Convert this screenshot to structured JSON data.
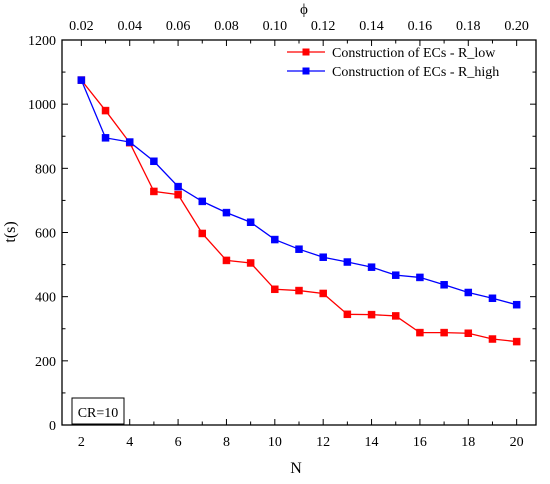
{
  "chart_data": {
    "type": "line",
    "xlabel": "N",
    "ylabel": "t(s)",
    "top_xlabel": "ϕ",
    "xlim": [
      1.2,
      20.8
    ],
    "ylim": [
      0,
      1200
    ],
    "top_xlim": [
      0.012,
      0.208
    ],
    "x_ticks": [
      2,
      4,
      6,
      8,
      10,
      12,
      14,
      16,
      18,
      20
    ],
    "y_ticks": [
      0,
      200,
      400,
      600,
      800,
      1000,
      1200
    ],
    "top_x_ticks": [
      "0.02",
      "0.04",
      "0.06",
      "0.08",
      "0.10",
      "0.12",
      "0.14",
      "0.16",
      "0.18",
      "0.20"
    ],
    "top_x_tick_values": [
      0.02,
      0.04,
      0.06,
      0.08,
      0.1,
      0.12,
      0.14,
      0.16,
      0.18,
      0.2
    ],
    "x": [
      2,
      3,
      4,
      5,
      6,
      7,
      8,
      9,
      10,
      11,
      12,
      13,
      14,
      15,
      16,
      17,
      18,
      19,
      20
    ],
    "series": [
      {
        "name": "Construction of ECs - R_low",
        "color": "#ff0000",
        "values": [
          1075,
          980,
          880,
          728,
          718,
          597,
          513,
          505,
          423,
          419,
          410,
          345,
          344,
          340,
          288,
          288,
          286,
          268,
          260
        ]
      },
      {
        "name": "Construction of ECs - R_high",
        "color": "#0000ff",
        "values": [
          1075,
          895,
          882,
          822,
          743,
          697,
          662,
          632,
          578,
          548,
          523,
          508,
          492,
          467,
          460,
          437,
          413,
          395,
          375
        ]
      }
    ],
    "legend_position": "top-right",
    "annotation": "CR=10",
    "grid": false
  }
}
